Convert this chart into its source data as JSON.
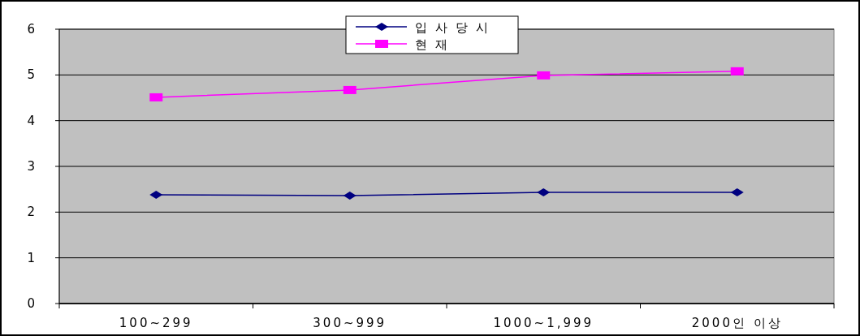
{
  "chart_data": {
    "type": "line",
    "categories": [
      "100~299",
      "300~999",
      "1000~1,999",
      "2000인 이상"
    ],
    "series": [
      {
        "name": "입사당시",
        "color": "#000080",
        "marker": "diamond",
        "values": [
          2.38,
          2.36,
          2.43,
          2.43
        ]
      },
      {
        "name": "현재",
        "color": "#ff00ff",
        "marker": "square",
        "values": [
          4.51,
          4.67,
          4.99,
          5.08
        ]
      }
    ],
    "ylim": [
      0,
      6
    ],
    "yticks": [
      0,
      1,
      2,
      3,
      4,
      5,
      6
    ],
    "grid": "y",
    "legend": "top"
  }
}
